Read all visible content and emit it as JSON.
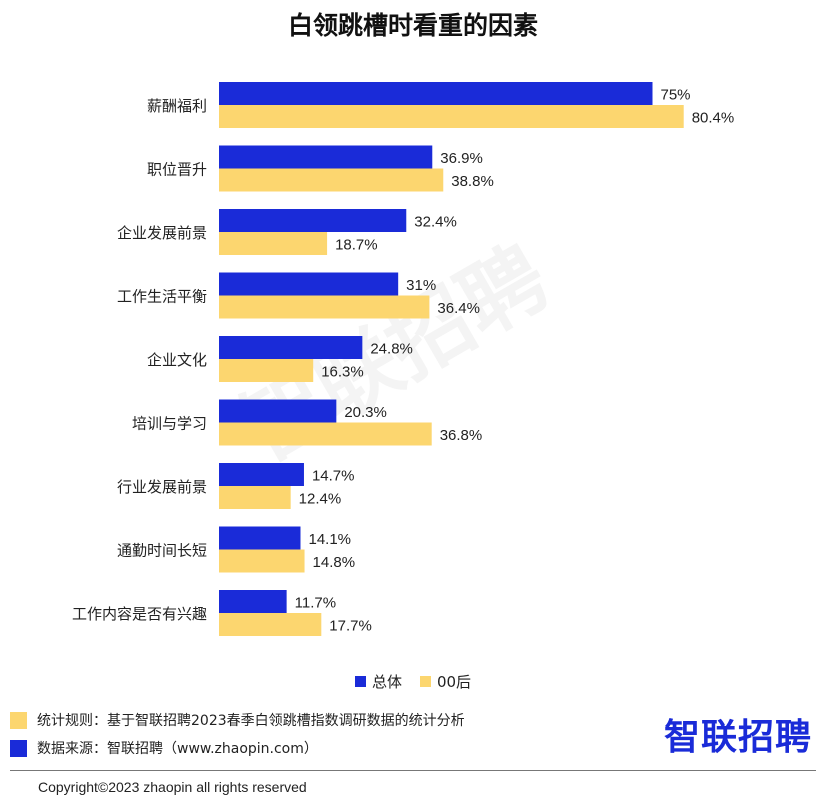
{
  "title": "白领跳槽时看重的因素",
  "watermark": "智联招聘",
  "colors": {
    "total": "#1a2bd8",
    "gen00": "#fcd66f",
    "text": "#222222"
  },
  "chart_data": {
    "type": "bar",
    "orientation": "horizontal",
    "title": "白领跳槽时看重的因素",
    "categories": [
      "薪酬福利",
      "职位晋升",
      "企业发展前景",
      "工作生活平衡",
      "企业文化",
      "培训与学习",
      "行业发展前景",
      "通勤时间长短",
      "工作内容是否有兴趣"
    ],
    "series": [
      {
        "name": "总体",
        "values": [
          75,
          36.9,
          32.4,
          31,
          24.8,
          20.3,
          14.7,
          14.1,
          11.7
        ],
        "labels": [
          "75%",
          "36.9%",
          "32.4%",
          "31%",
          "24.8%",
          "20.3%",
          "14.7%",
          "14.1%",
          "11.7%"
        ]
      },
      {
        "name": "00后",
        "values": [
          80.4,
          38.8,
          18.7,
          36.4,
          16.3,
          36.8,
          12.4,
          14.8,
          17.7
        ],
        "labels": [
          "80.4%",
          "38.8%",
          "18.7%",
          "36.4%",
          "16.3%",
          "36.8%",
          "12.4%",
          "14.8%",
          "17.7%"
        ]
      }
    ],
    "xlim": [
      0,
      100
    ],
    "grid": false,
    "legend": "bottom-center"
  },
  "legend": {
    "total": "总体",
    "gen00": "00后"
  },
  "footer": {
    "rule_note": "统计规则：基于智联招聘2023春季白领跳槽指数调研数据的统计分析",
    "source_note": "数据来源：智联招聘（www.zhaopin.com）",
    "logo": "智联招聘",
    "copyright": "Copyright©2023 zhaopin all rights reserved"
  }
}
